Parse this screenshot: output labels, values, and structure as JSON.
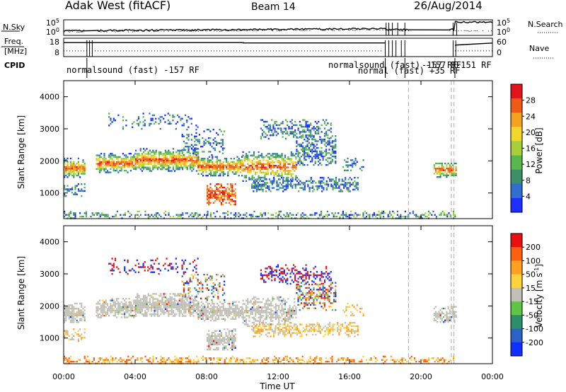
{
  "header": {
    "station": "Adak West (fitACF)",
    "beam": "Beam 14",
    "date": "26/Aug/2014"
  },
  "chart_data": [
    {
      "type": "line",
      "panel": "N.Sky / N.Search",
      "ylabel_left": "N.Sky",
      "ylabel_right": "N.Search",
      "yticks_left": [
        "10^5",
        "10^0"
      ],
      "yticks_right": [
        "10^5",
        "10^0"
      ],
      "log_scale": true
    },
    {
      "type": "line",
      "panel": "Freq. / Nave",
      "ylabel_left": "Freq. [MHz]",
      "ylabel_right": "Nave",
      "yticks_left": [
        "18",
        "8"
      ],
      "yticks_right": [
        "60",
        "0"
      ]
    },
    {
      "type": "table",
      "panel": "CPID",
      "label": "CPID",
      "entries": [
        "normalsound (fast) -157 RF",
        "normalsound (fast) -157 RF",
        "normal (fast) +35 RF",
        "-157 RF",
        "-151 RF"
      ]
    },
    {
      "type": "heatmap",
      "panel": "Power",
      "ylabel": "Slant Range [km]",
      "ylim": [
        200,
        4500
      ],
      "yticks": [
        "1000",
        "2000",
        "3000",
        "4000"
      ],
      "colorbar_label": "Power [dB]",
      "colorbar_ticks": [
        "28",
        "24",
        "20",
        "16",
        "12",
        "8",
        "4"
      ],
      "colorbar_range": [
        0,
        30
      ]
    },
    {
      "type": "heatmap",
      "panel": "Velocity",
      "ylabel": "Slant Range [km]",
      "ylim": [
        200,
        4500
      ],
      "yticks": [
        "1000",
        "2000",
        "3000",
        "4000"
      ],
      "colorbar_label": "Velocity [m s",
      "colorbar_unit_exp": "-1",
      "colorbar_unit_close": "]",
      "colorbar_ticks": [
        "200",
        "100",
        "50",
        "15",
        "-15",
        "-50",
        "-100",
        "-200"
      ]
    }
  ],
  "time_axis": {
    "xlabel": "Time UT",
    "xticks": [
      "00:00",
      "04:00",
      "08:00",
      "12:00",
      "16:00",
      "20:00",
      "00:00"
    ],
    "xlim_hours": [
      0,
      24
    ]
  },
  "colors": {
    "power_scale": [
      "#1f2fff",
      "#2f6fd0",
      "#3c8f6a",
      "#59b84c",
      "#a6cf3a",
      "#f2d82a",
      "#f5a21e",
      "#ef5a14",
      "#e0141a"
    ],
    "velocity_scale": [
      "#1030ff",
      "#2a62c8",
      "#2b8f6a",
      "#5fc545",
      "#c0c0b6",
      "#ffd23c",
      "#ffa020",
      "#ff6010",
      "#e81010"
    ],
    "ground_scatter": "#c0c0b6",
    "dashed_marker": "#aaaaaa"
  }
}
